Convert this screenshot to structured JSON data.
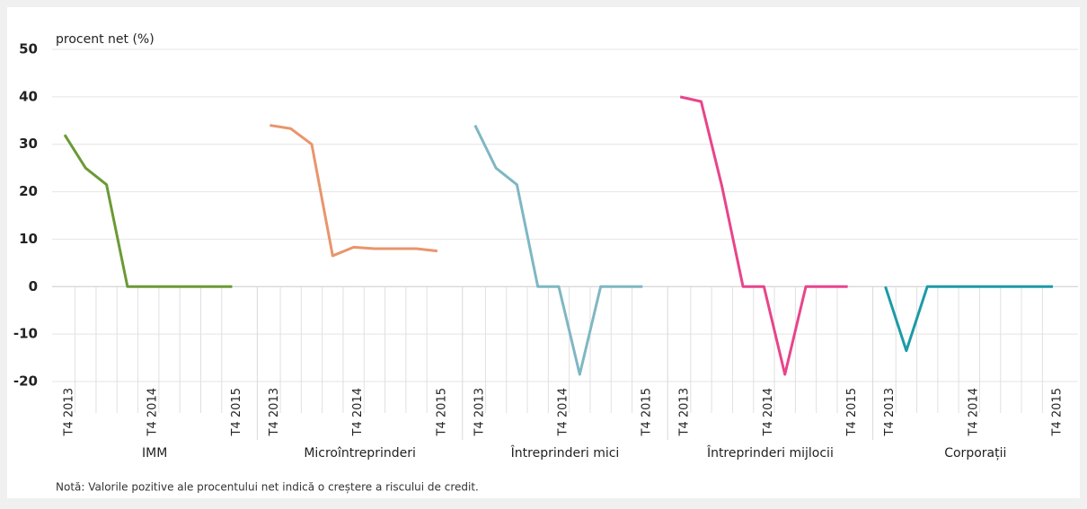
{
  "chart_data": {
    "type": "line",
    "ylabel": "procent net (%)",
    "ylim": [
      -20,
      50
    ],
    "yticks": [
      -20,
      -10,
      0,
      10,
      20,
      30,
      40,
      50
    ],
    "grid": true,
    "series": [
      {
        "name": "IMM",
        "color": "#6b9a36",
        "categories": [
          "T4 2013",
          null,
          null,
          null,
          "T4 2014",
          null,
          null,
          null,
          "T4 2015"
        ],
        "values": [
          32,
          25,
          21.5,
          0,
          0,
          0,
          0,
          0,
          0
        ]
      },
      {
        "name": "Microîntreprinderi",
        "color": "#e9956c",
        "categories": [
          "T4 2013",
          null,
          null,
          null,
          "T4 2014",
          null,
          null,
          null,
          "T4 2015"
        ],
        "values": [
          34,
          33.3,
          30,
          6.5,
          8.3,
          8,
          8,
          8,
          7.5
        ]
      },
      {
        "name": "Întreprinderi mici",
        "color": "#7fb7c3",
        "categories": [
          "T4 2013",
          null,
          null,
          null,
          "T4 2014",
          null,
          null,
          null,
          "T4 2015"
        ],
        "values": [
          34,
          25,
          21.5,
          0,
          0,
          -18.5,
          0,
          0,
          0
        ]
      },
      {
        "name": "Întreprinderi mijlocii",
        "color": "#e8448b",
        "categories": [
          "T4 2013",
          null,
          null,
          null,
          "T4 2014",
          null,
          null,
          null,
          "T4 2015"
        ],
        "values": [
          40,
          39,
          21,
          0,
          0,
          -18.5,
          0,
          0,
          0
        ]
      },
      {
        "name": "Corporații",
        "color": "#1b9ba6",
        "categories": [
          "T4 2013",
          null,
          null,
          null,
          "T4 2014",
          null,
          null,
          null,
          "T4 2015"
        ],
        "values": [
          0,
          -13.5,
          0,
          0,
          0,
          0,
          0,
          0,
          0
        ]
      }
    ],
    "note": "Notă: Valorile pozitive ale procentului net indică o creștere a riscului de credit."
  }
}
